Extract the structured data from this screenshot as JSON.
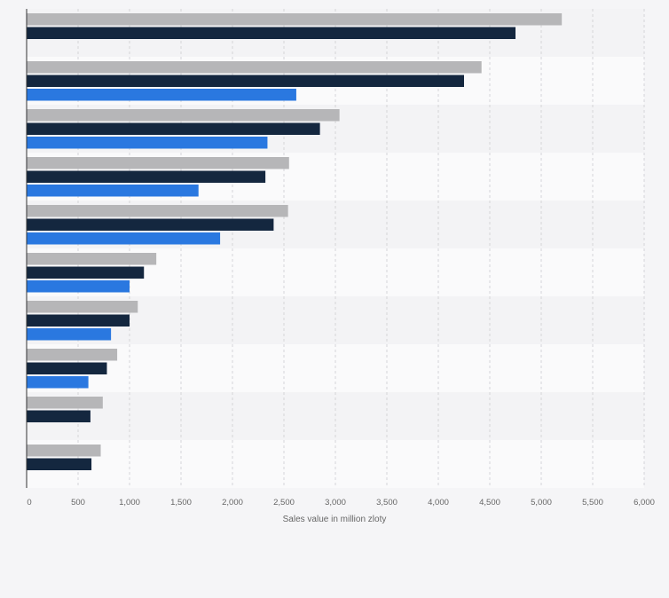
{
  "chart_data": {
    "type": "bar",
    "orientation": "horizontal",
    "xlabel": "Sales value in million zloty",
    "xlim": [
      0,
      6000
    ],
    "xticks": [
      0,
      500,
      1000,
      1500,
      2000,
      2500,
      3000,
      3500,
      4000,
      4500,
      5000,
      5500,
      6000
    ],
    "xtick_labels": [
      "0",
      "500",
      "1,000",
      "1,500",
      "2,000",
      "2,500",
      "3,000",
      "3,500",
      "4,000",
      "4,500",
      "5,000",
      "5,500",
      "6,000"
    ],
    "grid": true,
    "category_labels_visible": false,
    "series": [
      {
        "color": "#b6b6b8",
        "values": [
          5200,
          4420,
          3040,
          2550,
          2540,
          1260,
          1080,
          880,
          740,
          720
        ]
      },
      {
        "color": "#14273f",
        "values": [
          4750,
          4250,
          2850,
          2320,
          2400,
          1140,
          1000,
          780,
          620,
          630
        ]
      },
      {
        "color": "#2a78e0",
        "values": [
          null,
          2620,
          2340,
          1670,
          1880,
          1000,
          820,
          600,
          null,
          null
        ]
      }
    ]
  }
}
